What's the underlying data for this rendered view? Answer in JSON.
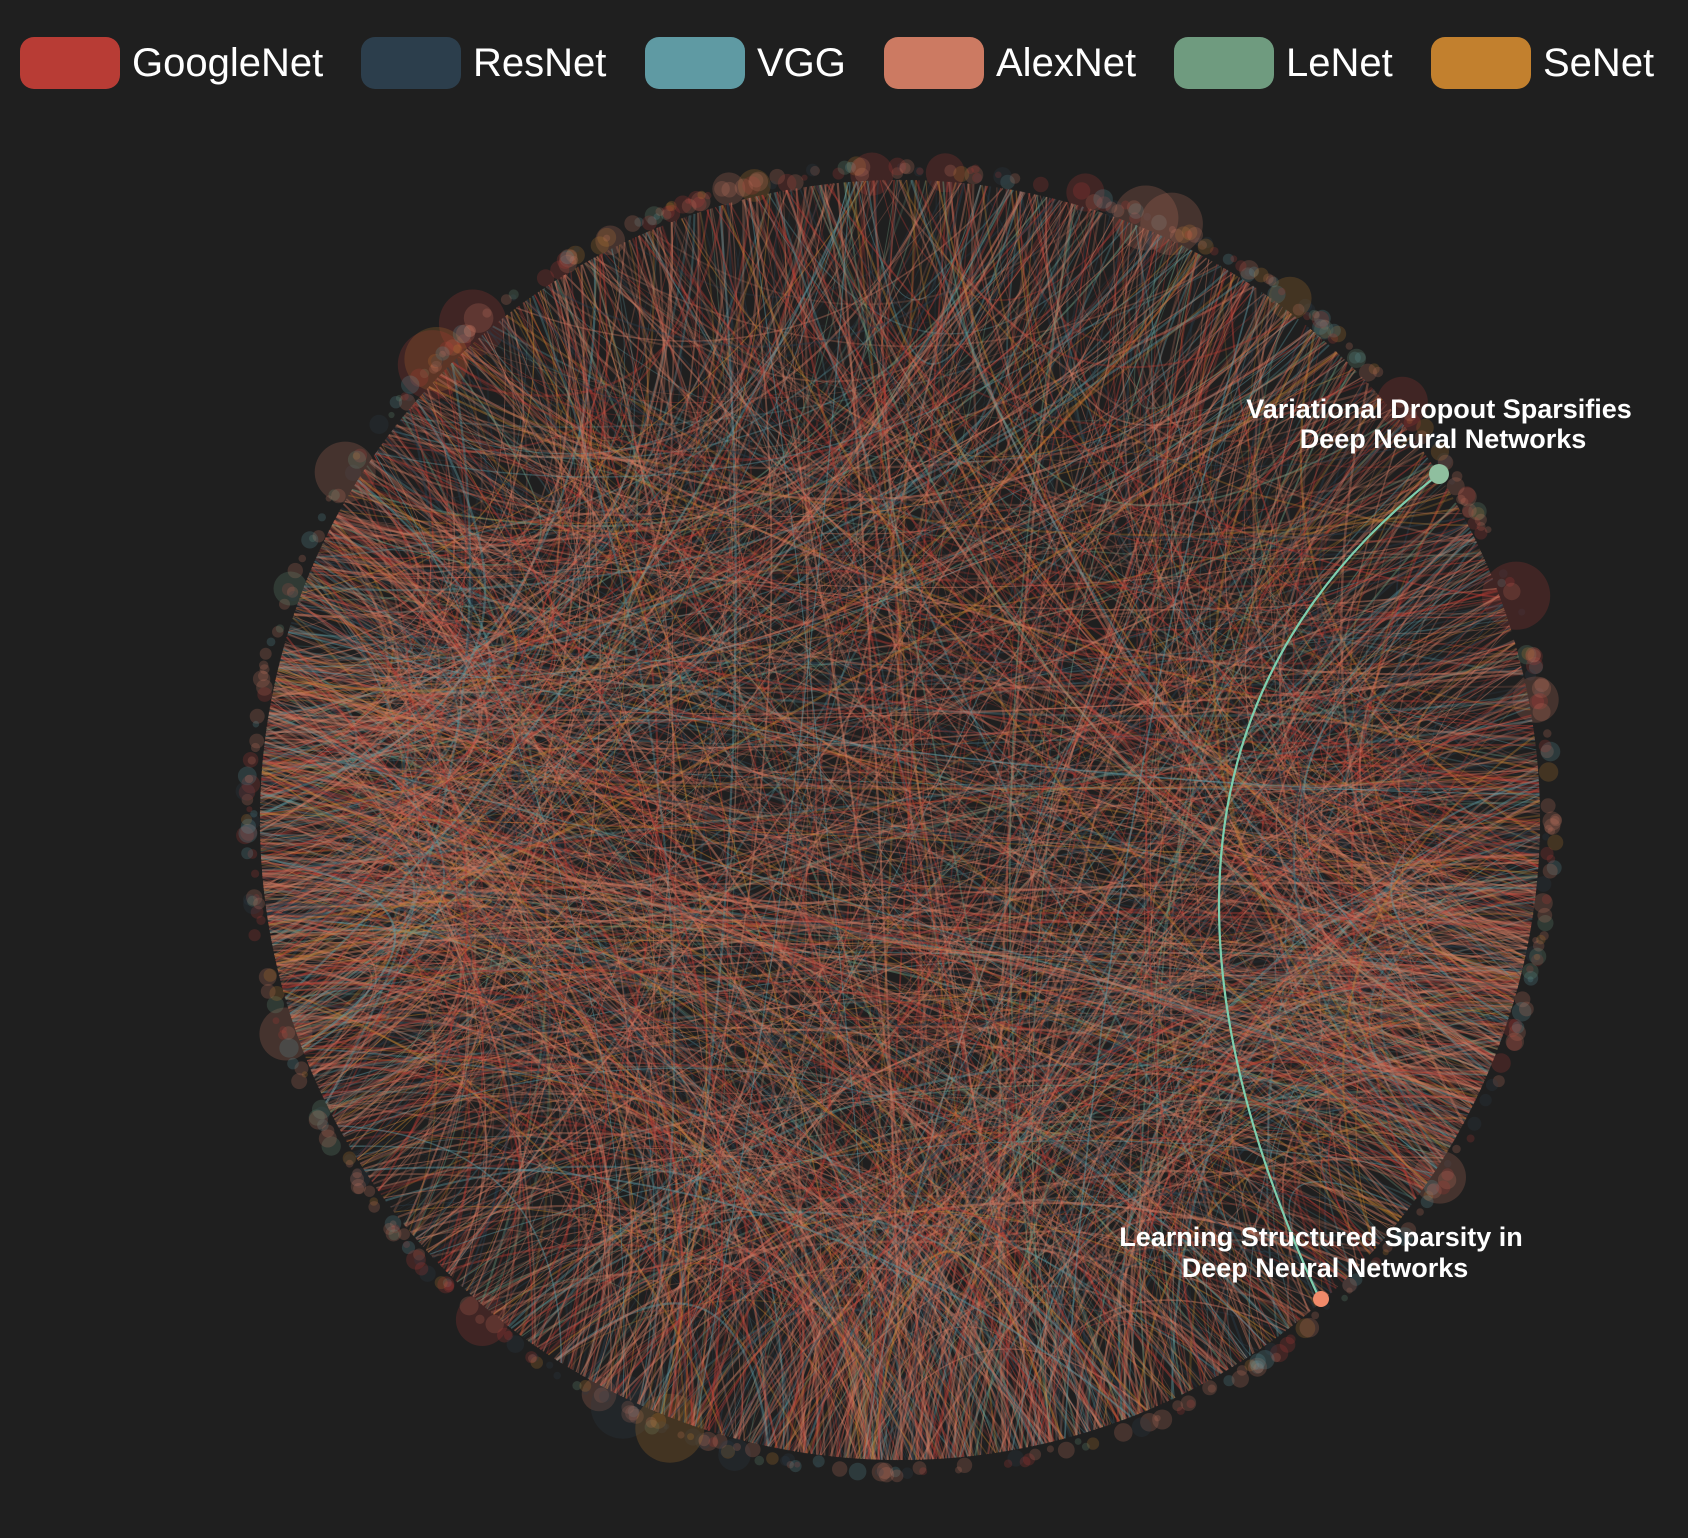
{
  "legend": [
    {
      "label": "GoogleNet",
      "color": "#b83c35"
    },
    {
      "label": "ResNet",
      "color": "#2c3e4c"
    },
    {
      "label": "VGG",
      "color": "#5f9aa3"
    },
    {
      "label": "AlexNet",
      "color": "#cc7a62"
    },
    {
      "label": "LeNet",
      "color": "#6f9b7f"
    },
    {
      "label": "SeNet",
      "color": "#c2802e"
    }
  ],
  "highlight": {
    "source": {
      "title_line1": "Variational Dropout Sparsifies",
      "title_line2": "Deep Neural Networks",
      "group": "LeNet",
      "color": "#8fbf9f"
    },
    "target": {
      "title_line1": "Learning Structured Sparsity in",
      "title_line2": "Deep Neural Networks",
      "group": "AlexNet",
      "color": "#f08a6a"
    },
    "link_color": "#7fcfae"
  },
  "background": "#1f1f1f"
}
